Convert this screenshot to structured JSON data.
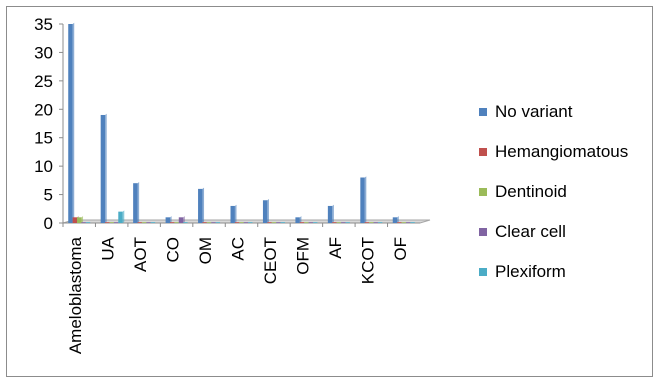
{
  "chart_data": {
    "type": "bar",
    "title": "",
    "xlabel": "",
    "ylabel": "",
    "ylim": [
      0,
      35
    ],
    "yticks": [
      "0",
      "5",
      "10",
      "15",
      "20",
      "25",
      "30",
      "35"
    ],
    "categories": [
      "Ameloblastoma",
      "UA",
      "AOT",
      "CO",
      "OM",
      "AC",
      "CEOT",
      "OFM",
      "AF",
      "KCOT",
      "OF"
    ],
    "series": [
      {
        "name": "No variant",
        "color": "#4f81bd",
        "values": [
          35,
          19,
          7,
          1,
          6,
          3,
          4,
          1,
          3,
          8,
          1
        ]
      },
      {
        "name": "Hemangiomatous",
        "color": "#c0504d",
        "values": [
          1,
          0,
          0,
          0,
          0,
          0,
          0,
          0,
          0,
          0,
          0
        ]
      },
      {
        "name": "Dentinoid",
        "color": "#9bbb59",
        "values": [
          1,
          0,
          0,
          0,
          0,
          0,
          0,
          0,
          0,
          0,
          0
        ]
      },
      {
        "name": "Clear cell",
        "color": "#8064a2",
        "values": [
          0,
          0,
          0,
          1,
          0,
          0,
          0,
          0,
          0,
          0,
          0
        ]
      },
      {
        "name": "Plexiform",
        "color": "#4bacc6",
        "values": [
          0,
          2,
          0,
          0,
          0,
          0,
          0,
          0,
          0,
          0,
          0
        ]
      }
    ],
    "grid": false,
    "legend_position": "right"
  }
}
